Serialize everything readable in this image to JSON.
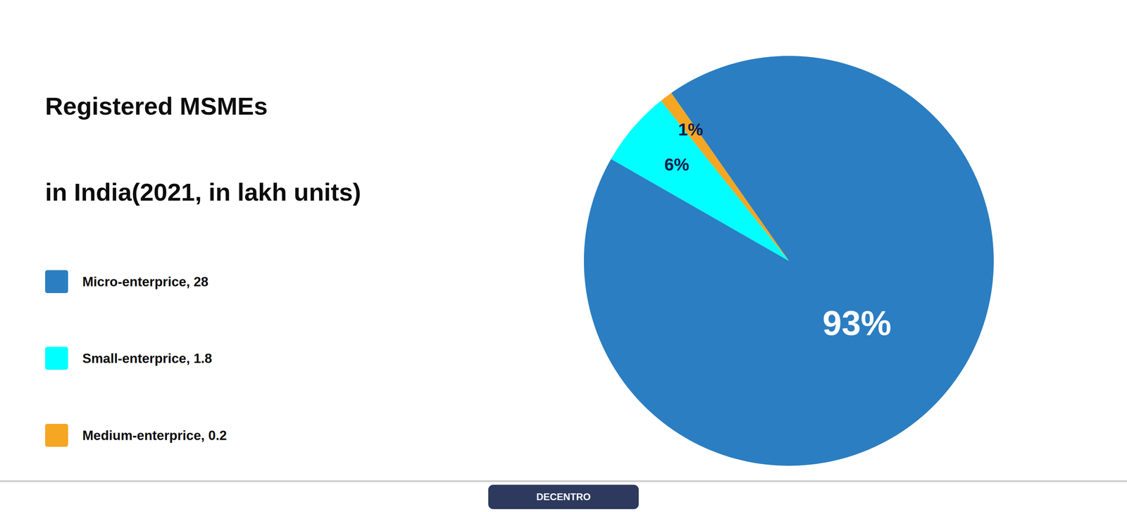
{
  "chart_data": {
    "type": "pie",
    "title": "Registered MSMEs",
    "subtitle": "in India(2021, in lakh units)",
    "categories": [
      "Micro-enterprice, 28",
      "Small-enterprice, 1.8",
      "Medium-enterprice, 0.2"
    ],
    "values": [
      93,
      6,
      1
    ],
    "value_labels": [
      "93%",
      "6%",
      "1%"
    ],
    "colors": [
      "#2B7EC1",
      "#00FFFF",
      "#F5A623"
    ],
    "data_labels": true,
    "legend": "left",
    "annotations": [
      "DECENTRO"
    ]
  }
}
